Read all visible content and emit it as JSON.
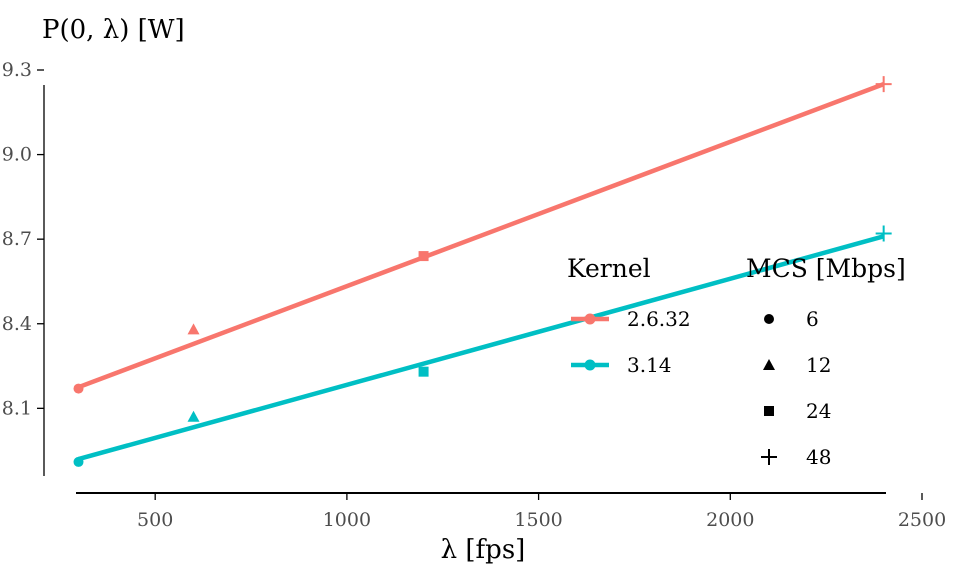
{
  "chart_data": {
    "type": "scatter",
    "xlabel": "λ [fps]",
    "ylabel": "P(0, λ) [W]",
    "xlim": [
      210,
      2500
    ],
    "ylim": [
      7.86,
      9.3
    ],
    "x_ticks": [
      500,
      1000,
      1500,
      2000,
      2500
    ],
    "x_tick_labels": [
      "500",
      "1000",
      "1500",
      "2000",
      "2500"
    ],
    "y_ticks": [
      8.1,
      8.4,
      8.7,
      9.0,
      9.3
    ],
    "y_tick_labels": [
      "8.1",
      "8.4",
      "8.7",
      "9.0",
      "9.3"
    ],
    "grid": false,
    "series": [
      {
        "name": "2.6.32",
        "color": "#f8766d",
        "points": [
          {
            "x": 300,
            "y": 8.17,
            "mcs": "6"
          },
          {
            "x": 600,
            "y": 8.38,
            "mcs": "12"
          },
          {
            "x": 1200,
            "y": 8.64,
            "mcs": "24"
          },
          {
            "x": 2400,
            "y": 9.25,
            "mcs": "48"
          }
        ],
        "fit_line": {
          "x": [
            300,
            2400
          ],
          "y": [
            8.175,
            9.25
          ]
        }
      },
      {
        "name": "3.14",
        "color": "#00bfc4",
        "points": [
          {
            "x": 300,
            "y": 7.91,
            "mcs": "6"
          },
          {
            "x": 600,
            "y": 8.07,
            "mcs": "12"
          },
          {
            "x": 1200,
            "y": 8.23,
            "mcs": "24"
          },
          {
            "x": 2400,
            "y": 8.72,
            "mcs": "48"
          }
        ],
        "fit_line": {
          "x": [
            300,
            2400
          ],
          "y": [
            7.92,
            8.71
          ]
        }
      }
    ],
    "legend": {
      "placement": "inside-right",
      "kernel": {
        "title": "Kernel",
        "entries": [
          {
            "label": "2.6.32",
            "color": "#f8766d"
          },
          {
            "label": "3.14",
            "color": "#00bfc4"
          }
        ]
      },
      "mcs": {
        "title": "MCS [Mbps]",
        "entries": [
          {
            "label": "6",
            "shape": "circle"
          },
          {
            "label": "12",
            "shape": "triangle"
          },
          {
            "label": "24",
            "shape": "square"
          },
          {
            "label": "48",
            "shape": "plus"
          }
        ]
      }
    }
  }
}
